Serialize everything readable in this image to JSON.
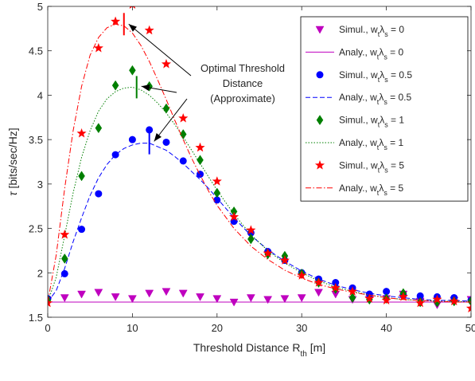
{
  "chart_data": {
    "type": "scatter",
    "xlabel": "Threshold Distance R",
    "xlabel_sub": "th",
    "xlabel_unit": " [m]",
    "ylabel_symbol": "τ",
    "ylabel_unit": " [bits/sec/Hz]",
    "xlim": [
      0,
      50
    ],
    "ylim": [
      1.5,
      5
    ],
    "xticks": [
      0,
      10,
      20,
      30,
      40,
      50
    ],
    "yticks": [
      1.5,
      2,
      2.5,
      3,
      3.5,
      4,
      4.5,
      5
    ],
    "grid": false,
    "legend_position": "top-right",
    "annotation": {
      "lines": [
        "Optimal Threshold",
        "Distance",
        "(Approximate)"
      ],
      "targets": [
        [
          9,
          4.8
        ],
        [
          10.5,
          4.1
        ],
        [
          12,
          3.48
        ]
      ]
    },
    "series": [
      {
        "label": "Simul., w",
        "label_sub": "t",
        "label_mid": "λ",
        "label_sub2": "s",
        "label_val": " = 0",
        "kind": "marker",
        "marker": "triangle-down",
        "color": "#bf00bf",
        "x": [
          0,
          2,
          4,
          6,
          8,
          10,
          12,
          14,
          16,
          18,
          20,
          22,
          24,
          26,
          28,
          30,
          32,
          34,
          36,
          38,
          40,
          42,
          44,
          46,
          48,
          50
        ],
        "y": [
          1.69,
          1.72,
          1.76,
          1.78,
          1.73,
          1.71,
          1.77,
          1.79,
          1.77,
          1.73,
          1.71,
          1.67,
          1.72,
          1.7,
          1.71,
          1.72,
          1.78,
          1.76,
          1.7,
          1.7,
          1.71,
          1.76,
          1.68,
          1.64,
          1.69,
          1.7
        ]
      },
      {
        "label": "Analy., w",
        "label_sub": "t",
        "label_mid": "λ",
        "label_sub2": "s",
        "label_val": " = 0",
        "kind": "line",
        "dash": "solid",
        "color": "#bf00bf",
        "x": [
          0,
          50
        ],
        "y": [
          1.67,
          1.67
        ]
      },
      {
        "label": "Simul., w",
        "label_sub": "t",
        "label_mid": "λ",
        "label_sub2": "s",
        "label_val": " = 0.5",
        "kind": "marker",
        "marker": "circle",
        "color": "#0000ff",
        "x": [
          0,
          2,
          4,
          6,
          8,
          10,
          12,
          14,
          16,
          18,
          20,
          22,
          24,
          26,
          28,
          30,
          32,
          34,
          36,
          38,
          40,
          42,
          44,
          46,
          48,
          50
        ],
        "y": [
          1.71,
          1.99,
          2.49,
          2.89,
          3.33,
          3.5,
          3.61,
          3.47,
          3.26,
          3.11,
          2.82,
          2.58,
          2.45,
          2.24,
          2.14,
          2.0,
          1.93,
          1.89,
          1.83,
          1.76,
          1.79,
          1.75,
          1.74,
          1.73,
          1.72,
          1.69
        ]
      },
      {
        "label": "Analy., w",
        "label_sub": "t",
        "label_mid": "λ",
        "label_sub2": "s",
        "label_val": " = 0.5",
        "kind": "line",
        "dash": "dashed",
        "color": "#0000ff",
        "x": [
          0,
          1,
          2,
          3,
          4,
          5,
          6,
          7,
          8,
          9,
          10,
          11,
          12,
          13,
          14,
          15,
          16,
          17,
          18,
          19,
          20,
          22,
          24,
          26,
          28,
          30,
          32,
          34,
          36,
          38,
          40,
          42,
          44,
          46,
          48,
          50
        ],
        "y": [
          1.67,
          1.8,
          2.05,
          2.35,
          2.62,
          2.87,
          3.07,
          3.22,
          3.33,
          3.4,
          3.44,
          3.46,
          3.46,
          3.42,
          3.38,
          3.31,
          3.23,
          3.14,
          3.05,
          2.95,
          2.84,
          2.62,
          2.42,
          2.26,
          2.13,
          2.02,
          1.93,
          1.86,
          1.81,
          1.77,
          1.74,
          1.72,
          1.7,
          1.69,
          1.69,
          1.68
        ]
      },
      {
        "label": "Simul., w",
        "label_sub": "t",
        "label_mid": "λ",
        "label_sub2": "s",
        "label_val": " = 1",
        "kind": "marker",
        "marker": "diamond",
        "color": "#007f00",
        "x": [
          0,
          2,
          4,
          6,
          8,
          10,
          12,
          14,
          16,
          18,
          20,
          22,
          24,
          26,
          28,
          30,
          32,
          34,
          36,
          38,
          40,
          42,
          44,
          46,
          48,
          50
        ],
        "y": [
          1.69,
          2.16,
          3.09,
          3.63,
          4.11,
          4.28,
          4.1,
          3.85,
          3.56,
          3.27,
          2.9,
          2.69,
          2.38,
          2.21,
          2.19,
          1.99,
          1.89,
          1.82,
          1.72,
          1.7,
          1.71,
          1.77,
          1.67,
          1.67,
          1.68,
          1.68
        ]
      },
      {
        "label": "Analy., w",
        "label_sub": "t",
        "label_mid": "λ",
        "label_sub2": "s",
        "label_val": " = 1",
        "kind": "line",
        "dash": "dotted",
        "color": "#007f00",
        "x": [
          0,
          1,
          2,
          3,
          4,
          5,
          6,
          7,
          8,
          9,
          10,
          11,
          12,
          13,
          14,
          15,
          16,
          17,
          18,
          19,
          20,
          22,
          24,
          26,
          28,
          30,
          32,
          34,
          36,
          38,
          40,
          42,
          44,
          46,
          48,
          50
        ],
        "y": [
          1.67,
          1.95,
          2.42,
          2.9,
          3.3,
          3.6,
          3.82,
          3.96,
          4.04,
          4.08,
          4.09,
          4.06,
          4.0,
          3.91,
          3.8,
          3.67,
          3.53,
          3.38,
          3.23,
          3.08,
          2.93,
          2.66,
          2.43,
          2.25,
          2.11,
          2.0,
          1.91,
          1.84,
          1.79,
          1.75,
          1.72,
          1.7,
          1.69,
          1.68,
          1.68,
          1.67
        ]
      },
      {
        "label": "Simul., w",
        "label_sub": "t",
        "label_mid": "λ",
        "label_sub2": "s",
        "label_val": " = 5",
        "kind": "marker",
        "marker": "star",
        "color": "#ff0000",
        "x": [
          0,
          2,
          4,
          6,
          8,
          10,
          12,
          14,
          16,
          18,
          20,
          22,
          24,
          26,
          28,
          30,
          32,
          34,
          36,
          38,
          40,
          42,
          44,
          46,
          48,
          50
        ],
        "y": [
          1.66,
          2.43,
          3.57,
          4.53,
          4.83,
          5.02,
          4.73,
          4.35,
          3.74,
          3.41,
          3.03,
          2.63,
          2.48,
          2.22,
          2.14,
          1.97,
          1.89,
          1.83,
          1.79,
          1.71,
          1.69,
          1.73,
          1.66,
          1.7,
          1.68,
          1.6
        ]
      },
      {
        "label": "Analy., w",
        "label_sub": "t",
        "label_mid": "λ",
        "label_sub2": "s",
        "label_val": " = 5",
        "kind": "line",
        "dash": "dashdot",
        "color": "#ff0000",
        "x": [
          0,
          1,
          2,
          3,
          4,
          5,
          6,
          7,
          8,
          9,
          10,
          11,
          12,
          13,
          14,
          15,
          16,
          17,
          18,
          19,
          20,
          22,
          24,
          26,
          28,
          30,
          32,
          34,
          36,
          38,
          40,
          42,
          44,
          46,
          48,
          50
        ],
        "y": [
          1.67,
          2.2,
          2.95,
          3.6,
          4.1,
          4.45,
          4.65,
          4.76,
          4.8,
          4.78,
          4.7,
          4.56,
          4.38,
          4.17,
          3.95,
          3.72,
          3.5,
          3.29,
          3.1,
          2.92,
          2.76,
          2.5,
          2.3,
          2.15,
          2.03,
          1.94,
          1.87,
          1.82,
          1.78,
          1.75,
          1.72,
          1.7,
          1.69,
          1.68,
          1.67,
          1.67
        ]
      }
    ],
    "optimal_marks": [
      {
        "x": 9,
        "y": 4.8,
        "color": "#ff0000"
      },
      {
        "x": 10.5,
        "y": 4.09,
        "color": "#007f00"
      },
      {
        "x": 12,
        "y": 3.46,
        "color": "#0000ff"
      }
    ]
  }
}
